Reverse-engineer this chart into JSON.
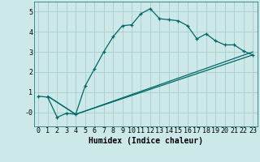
{
  "xlabel": "Humidex (Indice chaleur)",
  "bg_color": "#cce8e8",
  "line_color": "#006868",
  "grid_color": "#aacccc",
  "xlim": [
    -0.5,
    23.5
  ],
  "ylim": [
    -0.7,
    5.5
  ],
  "xticks": [
    0,
    1,
    2,
    3,
    4,
    5,
    6,
    7,
    8,
    9,
    10,
    11,
    12,
    13,
    14,
    15,
    16,
    17,
    18,
    19,
    20,
    21,
    22,
    23
  ],
  "yticks": [
    0,
    1,
    2,
    3,
    4,
    5
  ],
  "ytick_labels": [
    "-0",
    "1",
    "2",
    "3",
    "4",
    "5"
  ],
  "line1_x": [
    0,
    1,
    2,
    3,
    4,
    5,
    6,
    7,
    8,
    9,
    10,
    11,
    12,
    13,
    14,
    15,
    16,
    17,
    18,
    19,
    20,
    21,
    22,
    23
  ],
  "line1_y": [
    0.8,
    0.75,
    -0.25,
    -0.05,
    -0.1,
    1.3,
    2.15,
    3.0,
    3.75,
    4.3,
    4.35,
    4.9,
    5.15,
    4.65,
    4.6,
    4.55,
    4.3,
    3.65,
    3.9,
    3.55,
    3.35,
    3.35,
    3.05,
    2.85
  ],
  "line2_x": [
    1,
    4,
    23
  ],
  "line2_y": [
    0.8,
    -0.1,
    3.0
  ],
  "line3_x": [
    1,
    4,
    23
  ],
  "line3_y": [
    0.8,
    -0.1,
    2.85
  ]
}
